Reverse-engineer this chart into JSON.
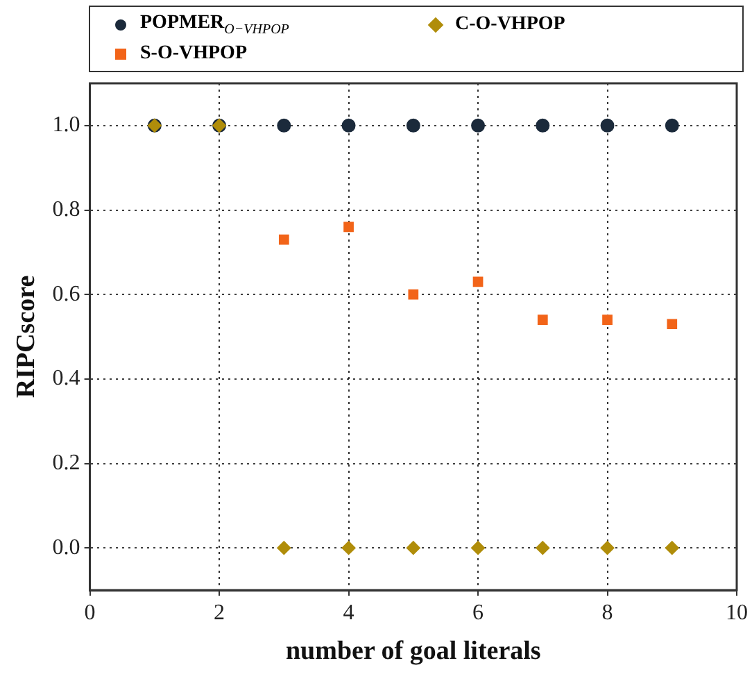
{
  "chart_data": {
    "type": "scatter",
    "xlabel": "number of goal literals",
    "ylabel": "RIPCscore",
    "x": [
      1,
      2,
      3,
      4,
      5,
      6,
      7,
      8,
      9
    ],
    "series": [
      {
        "name": "POPMER$_{O−VHPOP}$",
        "color": "#1b2a3b",
        "marker": "circle",
        "values": [
          1,
          1,
          1,
          1,
          1,
          1,
          1,
          1,
          1
        ]
      },
      {
        "name": "S-O-VHPOP",
        "color": "#f26419",
        "marker": "square",
        "values": [
          null,
          null,
          0.73,
          0.76,
          0.6,
          0.63,
          0.54,
          0.54,
          0.53
        ]
      },
      {
        "name": "C-O-VHPOP",
        "color": "#b08d0a",
        "marker": "diamond",
        "values": [
          1,
          1,
          0,
          0,
          0,
          0,
          0,
          0,
          0
        ]
      }
    ],
    "xlim": [
      0,
      10
    ],
    "xticks": [
      0,
      2,
      4,
      6,
      8,
      10
    ],
    "ylim": [
      -0.1,
      1.1
    ],
    "yticks": [
      {
        "value": 0,
        "label": "0.0"
      },
      0.2,
      0.4,
      0.6,
      0.8,
      {
        "value": 1,
        "label": "1.0"
      }
    ],
    "grid": true,
    "legend": "top"
  }
}
